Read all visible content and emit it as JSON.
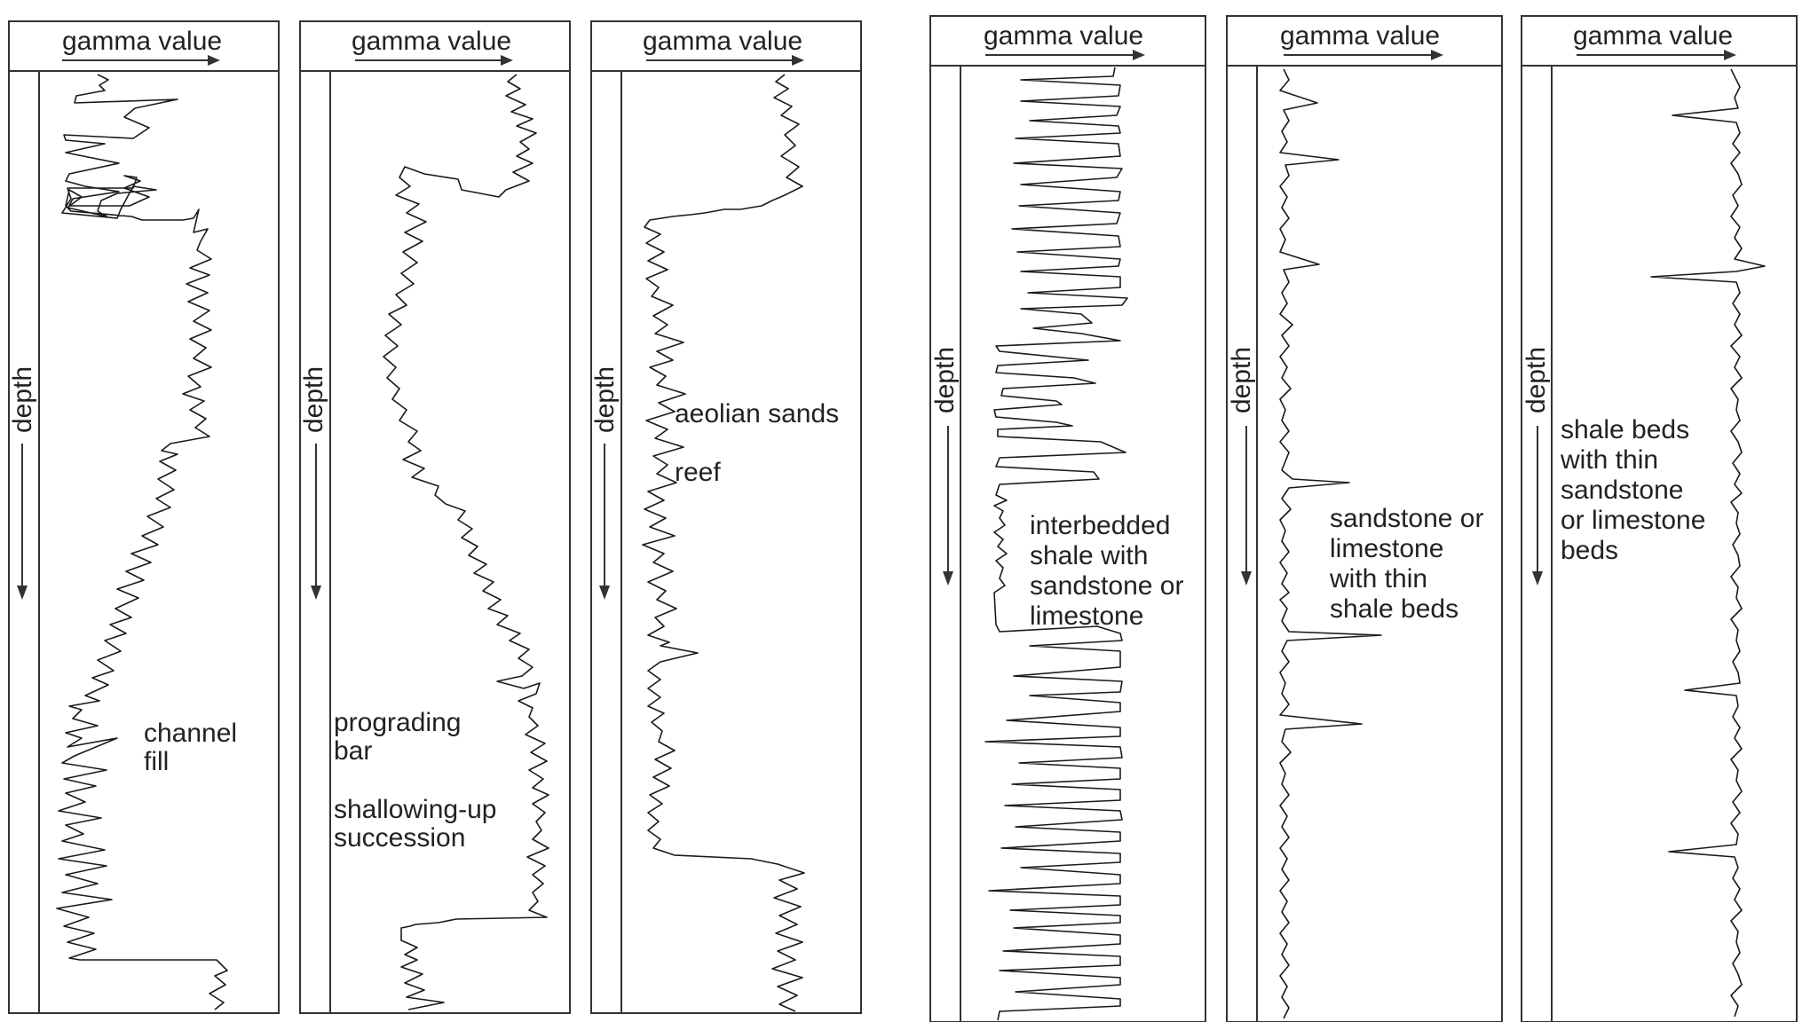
{
  "axis_labels": {
    "gamma": "gamma value",
    "depth": "depth"
  },
  "colors": {
    "ink": "#1a1a1a",
    "frame": "#333333",
    "background": "#ffffff"
  },
  "panels": [
    {
      "id": "channel-fill",
      "captions": [
        [
          "channel",
          "fill"
        ]
      ]
    },
    {
      "id": "prograding-bar",
      "captions": [
        [
          "prograding",
          "bar"
        ],
        [
          "shallowing-up",
          "succession"
        ]
      ]
    },
    {
      "id": "aeolian-reef",
      "captions": [
        [
          "aeolian sands"
        ],
        [
          "reef"
        ]
      ]
    },
    {
      "id": "interbedded",
      "captions": [
        [
          "interbedded",
          "shale with",
          "sandstone or",
          "limestone"
        ]
      ]
    },
    {
      "id": "sandstone-thin-shale",
      "captions": [
        [
          "sandstone or",
          "limestone",
          "with thin",
          "shale beds"
        ]
      ]
    },
    {
      "id": "shale-thin-sandstone",
      "captions": [
        [
          "shale beds",
          "with thin",
          "sandstone",
          "or limestone",
          "beds"
        ]
      ]
    }
  ]
}
